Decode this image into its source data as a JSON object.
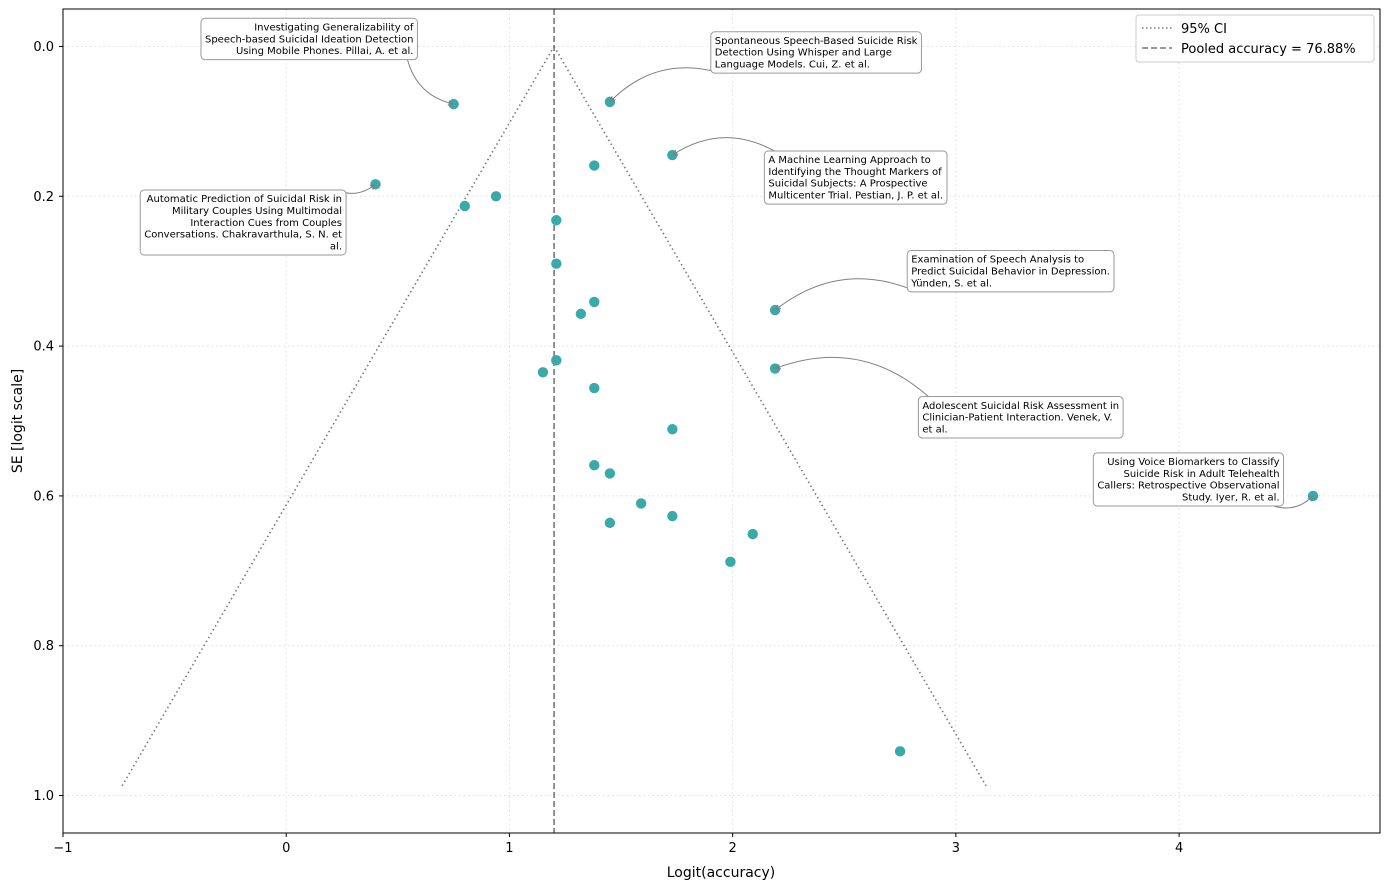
{
  "chart_data": {
    "type": "scatter",
    "title": "",
    "xlabel": "Logit(accuracy)",
    "ylabel": "SE [logit scale]",
    "xlim": [
      -1,
      4.9
    ],
    "ylim": [
      1.05,
      -0.05
    ],
    "y_inverted": true,
    "grid": true,
    "xticks": [
      -1,
      0,
      1,
      2,
      3,
      4
    ],
    "yticks": [
      0.0,
      0.2,
      0.4,
      0.6,
      0.8,
      1.0
    ],
    "xtick_labels": [
      "−1",
      "0",
      "1",
      "2",
      "3",
      "4"
    ],
    "ytick_labels": [
      "0.0",
      "0.2",
      "0.4",
      "0.6",
      "0.8",
      "1.0"
    ],
    "pooled_logit": 1.2,
    "ci_lines": {
      "se_max": 0.987,
      "left_x_at_max": -0.735,
      "right_x_at_max": 3.135
    },
    "legend": {
      "position": "top-right",
      "entries": [
        {
          "label": "95% CI",
          "style": "dotted"
        },
        {
          "label": "Pooled accuracy = 76.88%",
          "style": "dashed"
        }
      ]
    },
    "colors": {
      "points": "#3aa9a9",
      "lines": "#777777",
      "arrows": "#808080",
      "box_border": "#999999",
      "grid": "#dddddd"
    },
    "points": [
      {
        "x": 0.75,
        "y": 0.077
      },
      {
        "x": 1.45,
        "y": 0.074
      },
      {
        "x": 1.73,
        "y": 0.145
      },
      {
        "x": 1.38,
        "y": 0.159
      },
      {
        "x": 0.4,
        "y": 0.184
      },
      {
        "x": 0.8,
        "y": 0.213
      },
      {
        "x": 0.94,
        "y": 0.2
      },
      {
        "x": 1.21,
        "y": 0.232
      },
      {
        "x": 1.21,
        "y": 0.29
      },
      {
        "x": 1.38,
        "y": 0.341
      },
      {
        "x": 1.32,
        "y": 0.357
      },
      {
        "x": 2.19,
        "y": 0.352
      },
      {
        "x": 1.21,
        "y": 0.419
      },
      {
        "x": 1.15,
        "y": 0.435
      },
      {
        "x": 2.19,
        "y": 0.43
      },
      {
        "x": 1.38,
        "y": 0.456
      },
      {
        "x": 1.73,
        "y": 0.511
      },
      {
        "x": 1.38,
        "y": 0.559
      },
      {
        "x": 1.45,
        "y": 0.57
      },
      {
        "x": 1.59,
        "y": 0.61
      },
      {
        "x": 1.73,
        "y": 0.627
      },
      {
        "x": 1.45,
        "y": 0.636
      },
      {
        "x": 2.09,
        "y": 0.651
      },
      {
        "x": 1.99,
        "y": 0.688
      },
      {
        "x": 4.6,
        "y": 0.6
      },
      {
        "x": 2.75,
        "y": 0.941
      }
    ],
    "annotations": [
      {
        "lines": [
          "Investigating Generalizability of",
          "Speech-based Suicidal Ideation Detection",
          "Using Mobile Phones. Pillai, A. et al."
        ],
        "align": "right",
        "target": [
          0.75,
          0.077
        ],
        "anchor": [
          0.57,
          -0.01
        ]
      },
      {
        "lines": [
          "Spontaneous Speech-Based Suicide Risk",
          "Detection Using Whisper and Large",
          "Language Models. Cui, Z. et al."
        ],
        "align": "left",
        "target": [
          1.45,
          0.074
        ],
        "anchor": [
          1.92,
          0.008
        ]
      },
      {
        "lines": [
          "A Machine Learning Approach to",
          "Identifying the Thought Markers of",
          "Suicidal Subjects: A Prospective",
          "Multicenter Trial. Pestian, J. P. et al."
        ],
        "align": "left",
        "target": [
          1.73,
          0.145
        ],
        "anchor": [
          2.16,
          0.175
        ]
      },
      {
        "lines": [
          "Automatic Prediction of Suicidal Risk in",
          "Military Couples Using Multimodal",
          "Interaction Cues from Couples",
          "Conversations. Chakravarthula, S. N. et",
          "al."
        ],
        "align": "right",
        "target": [
          0.4,
          0.184
        ],
        "anchor": [
          0.25,
          0.235
        ]
      },
      {
        "lines": [
          "Examination of Speech Analysis to",
          "Predict Suicidal Behavior in Depression.",
          "Yünden, S. et al."
        ],
        "align": "left",
        "target": [
          2.19,
          0.352
        ],
        "anchor": [
          2.8,
          0.3
        ]
      },
      {
        "lines": [
          "Adolescent Suicidal Risk Assessment in",
          "Clinician-Patient Interaction. Venek, V.",
          "et al."
        ],
        "align": "left",
        "target": [
          2.19,
          0.43
        ],
        "anchor": [
          2.85,
          0.495
        ]
      },
      {
        "lines": [
          "Using Voice Biomarkers to Classify",
          "Suicide Risk in Adult Telehealth",
          "Callers: Retrospective Observational",
          "Study. Iyer, R. et al."
        ],
        "align": "right",
        "target": [
          4.6,
          0.6
        ],
        "anchor": [
          4.45,
          0.578
        ]
      }
    ]
  }
}
